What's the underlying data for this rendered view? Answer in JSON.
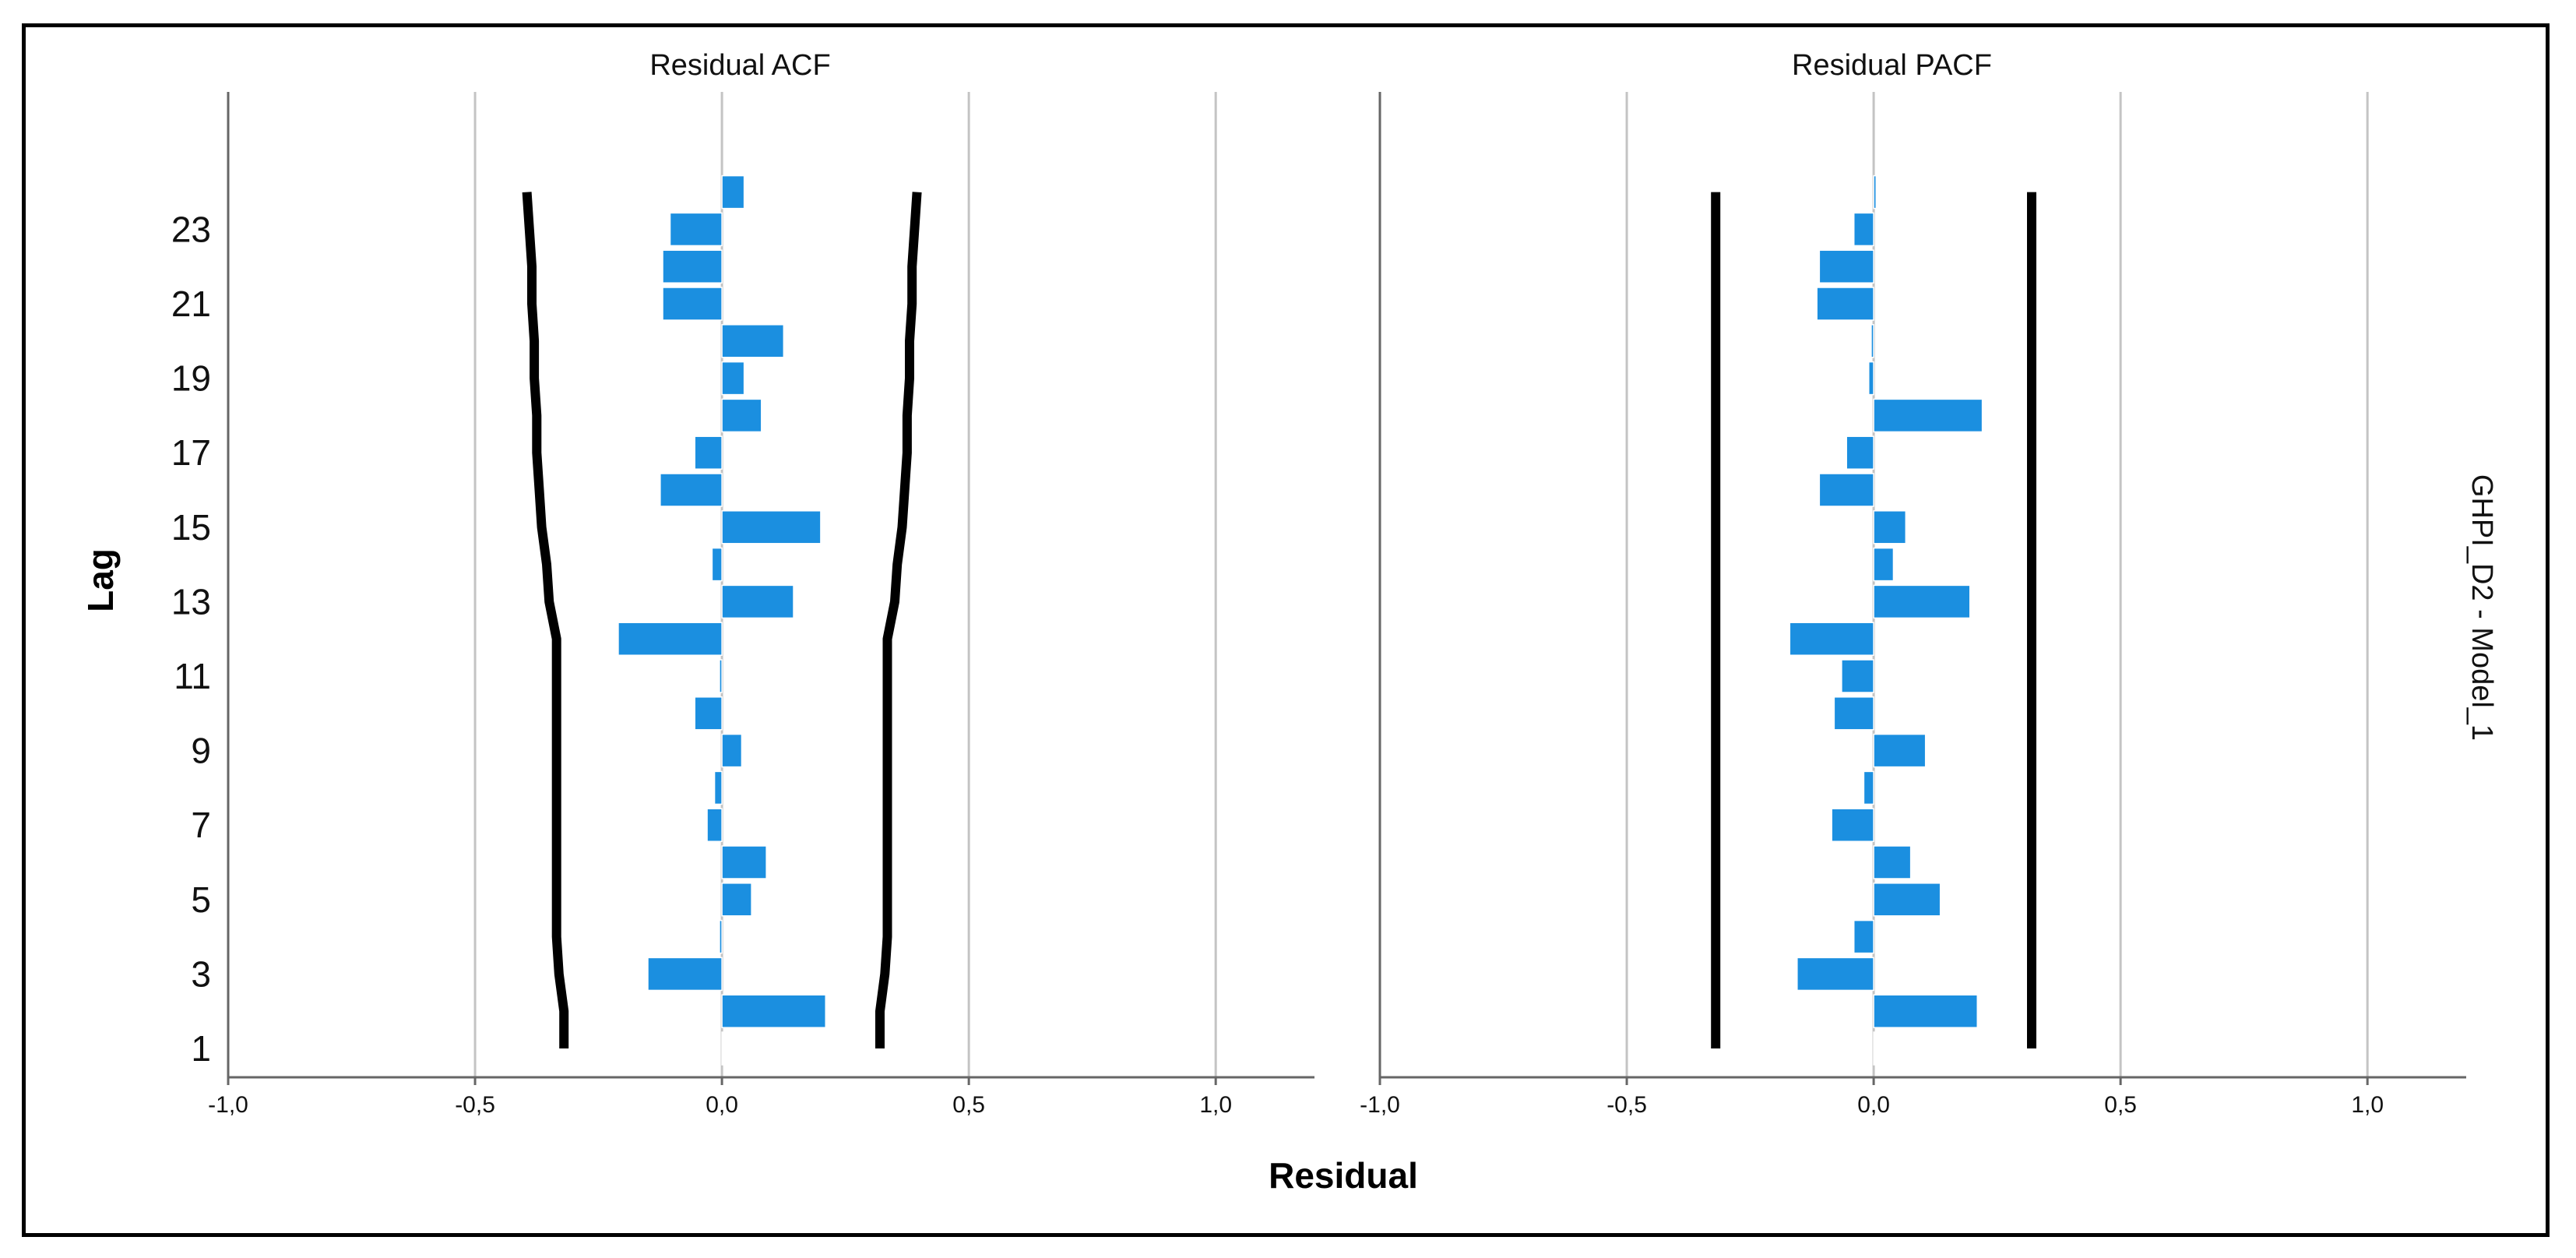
{
  "chart_data": {
    "type": "bar",
    "orientation": "horizontal",
    "xlabel": "Residual",
    "ylabel": "Lag",
    "model_label": "GHPI_D2 - Model_1",
    "xlim": [
      -1.0,
      1.2
    ],
    "x_ticks": [
      -1.0,
      -0.5,
      0.0,
      0.5,
      1.0
    ],
    "x_tick_labels": [
      "-1,0",
      "-0,5",
      "0,0",
      "0,5",
      "1,0"
    ],
    "y_tick_lags": [
      1,
      3,
      5,
      7,
      9,
      11,
      13,
      15,
      17,
      19,
      21,
      23
    ],
    "y_tick_labels": [
      "1",
      "3",
      "5",
      "7",
      "9",
      "11",
      "13",
      "15",
      "17",
      "19",
      "21",
      "23"
    ],
    "bar_color": "#1b8fe0",
    "limit_color": "#000000",
    "panels": [
      {
        "title": "Residual ACF",
        "lags": [
          1,
          2,
          3,
          4,
          5,
          6,
          7,
          8,
          9,
          10,
          11,
          12,
          13,
          14,
          15,
          16,
          17,
          18,
          19,
          20,
          21,
          22,
          23,
          24
        ],
        "values": [
          0.0,
          0.21,
          -0.15,
          -0.005,
          0.06,
          0.09,
          -0.03,
          -0.015,
          0.04,
          -0.055,
          -0.005,
          -0.21,
          0.145,
          -0.02,
          0.2,
          -0.125,
          -0.055,
          0.08,
          0.045,
          0.125,
          -0.12,
          -0.12,
          -0.105,
          0.045
        ],
        "upper_limit": [
          0.32,
          0.32,
          0.33,
          0.335,
          0.335,
          0.335,
          0.335,
          0.335,
          0.335,
          0.335,
          0.335,
          0.335,
          0.35,
          0.355,
          0.365,
          0.37,
          0.375,
          0.375,
          0.38,
          0.38,
          0.385,
          0.385,
          0.39,
          0.395
        ],
        "lower_limit": [
          -0.32,
          -0.32,
          -0.33,
          -0.335,
          -0.335,
          -0.335,
          -0.335,
          -0.335,
          -0.335,
          -0.335,
          -0.335,
          -0.335,
          -0.35,
          -0.355,
          -0.365,
          -0.37,
          -0.375,
          -0.375,
          -0.38,
          -0.38,
          -0.385,
          -0.385,
          -0.39,
          -0.395
        ]
      },
      {
        "title": "Residual PACF",
        "lags": [
          1,
          2,
          3,
          4,
          5,
          6,
          7,
          8,
          9,
          10,
          11,
          12,
          13,
          14,
          15,
          16,
          17,
          18,
          19,
          20,
          21,
          22,
          23,
          24
        ],
        "values": [
          0.0,
          0.21,
          -0.155,
          -0.04,
          0.135,
          0.075,
          -0.085,
          -0.02,
          0.105,
          -0.08,
          -0.065,
          -0.17,
          0.195,
          0.04,
          0.065,
          -0.11,
          -0.055,
          0.22,
          -0.01,
          -0.005,
          -0.115,
          -0.11,
          -0.04,
          0.005
        ],
        "upper_limit": [
          0.32,
          0.32,
          0.32,
          0.32,
          0.32,
          0.32,
          0.32,
          0.32,
          0.32,
          0.32,
          0.32,
          0.32,
          0.32,
          0.32,
          0.32,
          0.32,
          0.32,
          0.32,
          0.32,
          0.32,
          0.32,
          0.32,
          0.32,
          0.32
        ],
        "lower_limit": [
          -0.32,
          -0.32,
          -0.32,
          -0.32,
          -0.32,
          -0.32,
          -0.32,
          -0.32,
          -0.32,
          -0.32,
          -0.32,
          -0.32,
          -0.32,
          -0.32,
          -0.32,
          -0.32,
          -0.32,
          -0.32,
          -0.32,
          -0.32,
          -0.32,
          -0.32,
          -0.32,
          -0.32
        ]
      }
    ]
  }
}
